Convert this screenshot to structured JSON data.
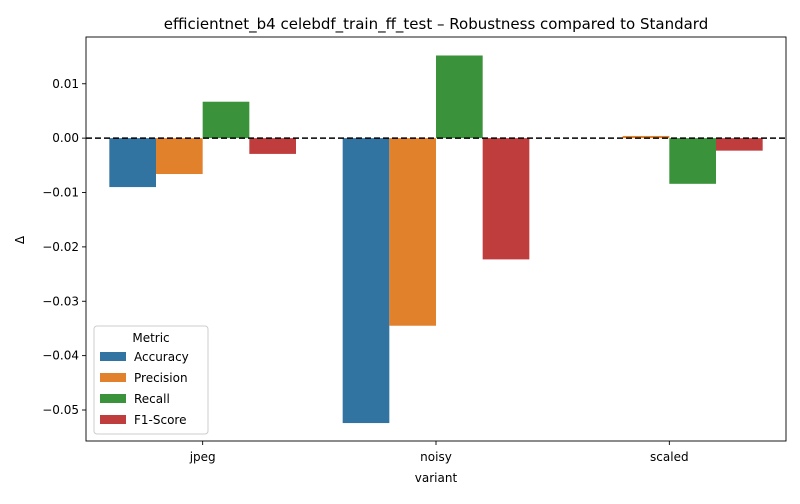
{
  "chart_data": {
    "type": "bar",
    "title": "efficientnet_b4 celebdf_train_ff_test – Robustness compared to Standard",
    "xlabel": "variant",
    "ylabel": "Δ",
    "categories": [
      "jpeg",
      "noisy",
      "scaled"
    ],
    "series": [
      {
        "name": "Accuracy",
        "color": "#3274a1",
        "values": [
          -0.009,
          -0.0524,
          0.0
        ]
      },
      {
        "name": "Precision",
        "color": "#e1812c",
        "values": [
          -0.0066,
          -0.0345,
          0.0004
        ]
      },
      {
        "name": "Recall",
        "color": "#3a923a",
        "values": [
          0.0067,
          0.0152,
          -0.0084
        ]
      },
      {
        "name": "F1-Score",
        "color": "#c03d3e",
        "values": [
          -0.0029,
          -0.0223,
          -0.0023
        ]
      }
    ],
    "ylim": [
      -0.0557,
      0.0186
    ],
    "yticks": [
      0.01,
      0.0,
      -0.01,
      -0.02,
      -0.03,
      -0.04,
      -0.05
    ],
    "ytick_labels": [
      "0.01",
      "0.00",
      "−0.01",
      "−0.02",
      "−0.03",
      "−0.04",
      "−0.05"
    ],
    "reference_line": {
      "y": 0.0,
      "style": "dashed",
      "color": "#000000"
    },
    "legend": {
      "title": "Metric",
      "placement": "lower-left"
    },
    "grid": false
  }
}
